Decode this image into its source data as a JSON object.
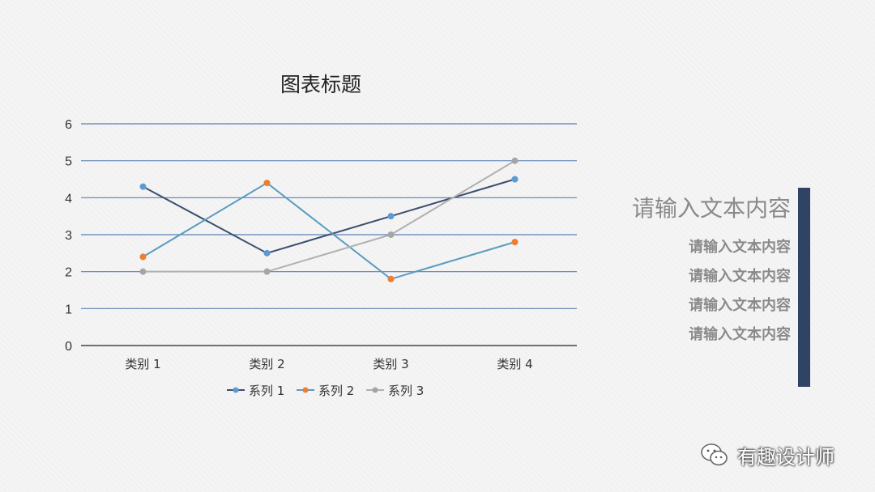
{
  "chart_data": {
    "type": "line",
    "title": "图表标题",
    "categories": [
      "类别 1",
      "类别 2",
      "类别 3",
      "类别 4"
    ],
    "ylim": [
      0,
      6
    ],
    "yticks": [
      0,
      1,
      2,
      3,
      4,
      5,
      6
    ],
    "grid": true,
    "legend_position": "bottom",
    "series": [
      {
        "name": "系列 1",
        "values": [
          4.3,
          2.5,
          3.5,
          4.5
        ],
        "line_color": "#3b4f6e",
        "marker_color": "#5b9bd5"
      },
      {
        "name": "系列 2",
        "values": [
          2.4,
          4.4,
          1.8,
          2.8
        ],
        "line_color": "#5b9bbf",
        "marker_color": "#ed7d31"
      },
      {
        "name": "系列 3",
        "values": [
          2.0,
          2.0,
          3.0,
          5.0
        ],
        "line_color": "#b0b0b0",
        "marker_color": "#a5a5a5"
      }
    ],
    "colors": {
      "grid": "#5b7fb5",
      "axis": "#222222"
    }
  },
  "text_panel": {
    "heading": "请输入文本内容",
    "lines": [
      "请输入文本内容",
      "请输入文本内容",
      "请输入文本内容",
      "请输入文本内容"
    ],
    "accent_color": "#2f4465"
  },
  "watermark": {
    "text": "有趣设计师",
    "icon": "wechat-icon"
  }
}
